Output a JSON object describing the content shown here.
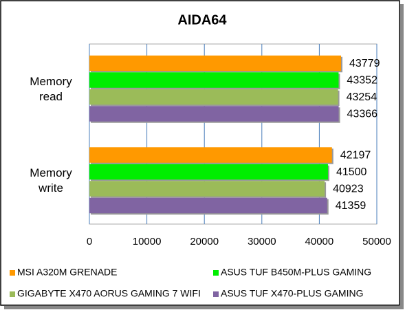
{
  "chart_data": {
    "type": "barh",
    "title": "AIDA64",
    "categories": [
      "Memory read",
      "Memory write"
    ],
    "series": [
      {
        "name": "MSI A320M GRENADE",
        "color": "#ff9900",
        "values": [
          43779,
          42197
        ]
      },
      {
        "name": "ASUS TUF B450M-PLUS GAMING",
        "color": "#00ee00",
        "values": [
          43352,
          41500
        ]
      },
      {
        "name": "GIGABYTE X470 AORUS GAMING 7 WIFI",
        "color": "#9bbb59",
        "values": [
          43254,
          40923
        ]
      },
      {
        "name": "ASUS TUF X470-PLUS GAMING",
        "color": "#8064a2",
        "values": [
          43366,
          41359
        ]
      }
    ],
    "xlim": [
      0,
      50000
    ],
    "xticks": [
      0,
      10000,
      20000,
      30000,
      40000,
      50000
    ],
    "grid": true
  }
}
